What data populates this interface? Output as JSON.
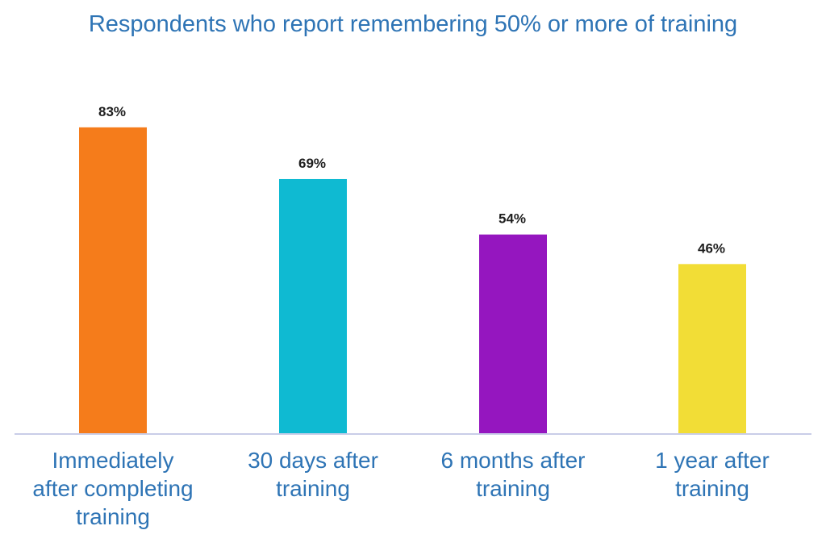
{
  "chart_data": {
    "type": "bar",
    "title": "Respondents who report remembering 50% or more of training",
    "xlabel": "",
    "ylabel": "",
    "categories": [
      "Immediately after completing training",
      "30 days after training",
      "6 months after training",
      "1 year after training"
    ],
    "category_lines": [
      "Immediately\nafter completing\ntraining",
      "30 days after\ntraining",
      "6 months after\ntraining",
      "1 year after\ntraining"
    ],
    "values": [
      83,
      69,
      54,
      46
    ],
    "value_labels": [
      "83%",
      "69%",
      "54%",
      "46%"
    ],
    "bar_colors": [
      "#f57c1b",
      "#0fbad2",
      "#9516bf",
      "#f2dd36"
    ],
    "ylim": [
      0,
      100
    ],
    "grid": false,
    "legend": "none"
  },
  "colors": {
    "title": "#2e74b5",
    "axis_line": "#c9cde8",
    "value_text": "#1f1f1f"
  }
}
